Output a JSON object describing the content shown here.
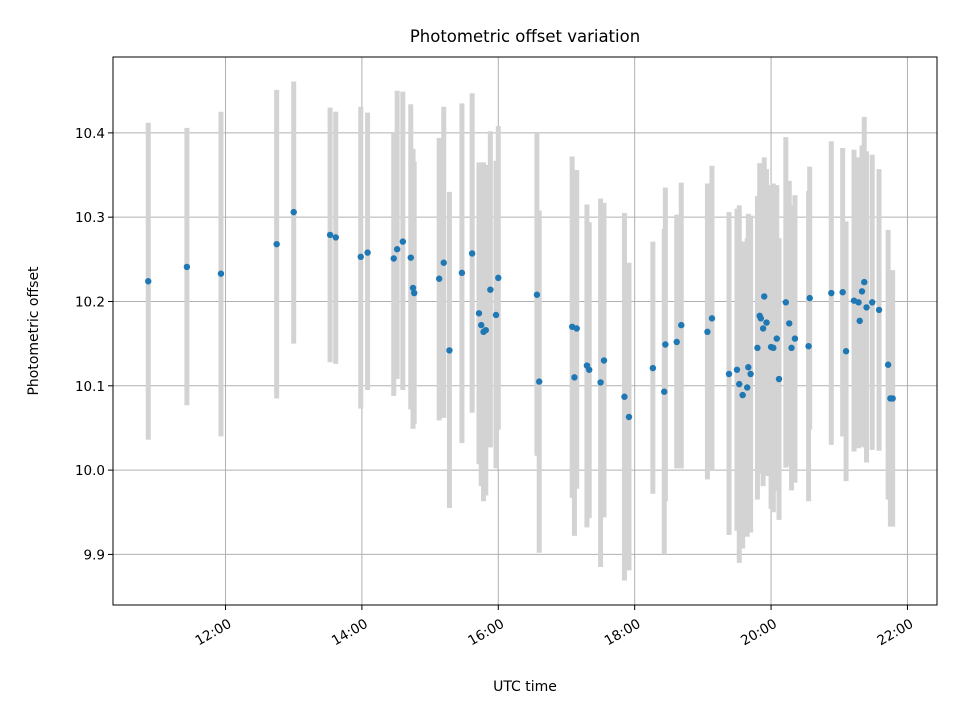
{
  "chart_data": {
    "type": "scatter",
    "title": "Photometric offset variation",
    "xlabel": "UTC time",
    "ylabel": "Photometric offset",
    "x_ticks": [
      "12:00",
      "14:00",
      "16:00",
      "18:00",
      "20:00",
      "22:00"
    ],
    "y_ticks": [
      "9.9",
      "10.0",
      "10.1",
      "10.2",
      "10.3",
      "10.4"
    ],
    "xlim": [
      "10:21",
      "22:26"
    ],
    "ylim": [
      9.84,
      10.49
    ],
    "grid": true,
    "colors": {
      "points": "#1f77b4",
      "error_bars": "#d3d3d3",
      "grid": "#b0b0b0"
    },
    "series": [
      {
        "x": [
          "10:52",
          "11:26",
          "11:56",
          "12:45",
          "13:00",
          "13:32",
          "13:37",
          "13:59",
          "14:05",
          "14:28",
          "14:31",
          "14:36",
          "14:43",
          "14:45",
          "14:46",
          "15:08",
          "15:12",
          "15:17",
          "15:28",
          "15:37",
          "15:43",
          "15:45",
          "15:47",
          "15:49",
          "15:53",
          "15:58",
          "16:00",
          "16:34",
          "16:36",
          "17:05",
          "17:07",
          "17:09",
          "17:18",
          "17:20",
          "17:30",
          "17:33",
          "17:51",
          "17:55",
          "18:16",
          "18:26",
          "18:27",
          "18:37",
          "18:41",
          "19:04",
          "19:08",
          "19:23",
          "19:30",
          "19:32",
          "19:35",
          "19:39",
          "19:40",
          "19:42",
          "19:48",
          "19:50",
          "19:51",
          "19:53",
          "19:54",
          "19:56",
          "20:00",
          "20:02",
          "20:05",
          "20:07",
          "20:13",
          "20:16",
          "20:18",
          "20:21",
          "20:33",
          "20:34",
          "20:53",
          "21:03",
          "21:06",
          "21:13",
          "21:17",
          "21:18",
          "21:20",
          "21:22",
          "21:24",
          "21:29",
          "21:35",
          "21:43",
          "21:45",
          "21:47"
        ],
        "y": [
          10.224,
          10.241,
          10.233,
          10.268,
          10.306,
          10.279,
          10.276,
          10.253,
          10.258,
          10.251,
          10.262,
          10.271,
          10.252,
          10.216,
          10.21,
          10.227,
          10.246,
          10.142,
          10.234,
          10.257,
          10.186,
          10.172,
          10.164,
          10.166,
          10.214,
          10.184,
          10.228,
          10.208,
          10.105,
          10.17,
          10.11,
          10.168,
          10.124,
          10.119,
          10.104,
          10.13,
          10.087,
          10.063,
          10.121,
          10.093,
          10.149,
          10.152,
          10.172,
          10.164,
          10.18,
          10.114,
          10.119,
          10.102,
          10.089,
          10.098,
          10.122,
          10.114,
          10.145,
          10.183,
          10.18,
          10.168,
          10.206,
          10.175,
          10.146,
          10.145,
          10.156,
          10.108,
          10.199,
          10.174,
          10.145,
          10.156,
          10.147,
          10.204,
          10.21,
          10.211,
          10.141,
          10.201,
          10.199,
          10.177,
          10.212,
          10.223,
          10.193,
          10.199,
          10.19,
          10.125,
          10.085,
          10.085
        ],
        "err_low": [
          10.036,
          10.077,
          10.04,
          10.085,
          10.15,
          10.128,
          10.126,
          10.073,
          10.095,
          10.088,
          10.108,
          10.095,
          10.072,
          10.049,
          10.055,
          10.059,
          10.062,
          9.955,
          10.032,
          10.068,
          10.007,
          9.981,
          9.963,
          9.97,
          10.027,
          10.002,
          10.048,
          10.017,
          9.902,
          9.967,
          9.922,
          9.978,
          9.932,
          9.943,
          9.885,
          9.944,
          9.869,
          9.881,
          9.972,
          9.9,
          9.963,
          10.002,
          10.002,
          9.989,
          9.999,
          9.923,
          9.928,
          9.89,
          9.907,
          9.921,
          9.94,
          9.926,
          9.965,
          10.002,
          9.996,
          9.981,
          10.027,
          9.993,
          9.954,
          9.95,
          9.975,
          9.941,
          10.003,
          10.005,
          9.976,
          9.985,
          9.963,
          10.048,
          10.03,
          10.04,
          9.987,
          10.022,
          10.026,
          10.028,
          10.039,
          10.027,
          10.009,
          10.024,
          10.023,
          9.965,
          9.933,
          9.933
        ],
        "err_high": [
          10.412,
          10.406,
          10.425,
          10.451,
          10.461,
          10.43,
          10.425,
          10.431,
          10.424,
          10.401,
          10.45,
          10.449,
          10.434,
          10.381,
          10.366,
          10.394,
          10.431,
          10.33,
          10.435,
          10.447,
          10.365,
          10.363,
          10.365,
          10.362,
          10.402,
          10.367,
          10.408,
          10.399,
          10.308,
          10.372,
          10.298,
          10.356,
          10.315,
          10.294,
          10.322,
          10.317,
          10.305,
          10.246,
          10.271,
          10.286,
          10.335,
          10.303,
          10.341,
          10.34,
          10.361,
          10.306,
          10.31,
          10.314,
          10.271,
          10.275,
          10.304,
          10.302,
          10.325,
          10.364,
          10.364,
          10.354,
          10.371,
          10.357,
          10.338,
          10.34,
          10.338,
          10.275,
          10.395,
          10.343,
          10.314,
          10.326,
          10.331,
          10.36,
          10.39,
          10.382,
          10.295,
          10.38,
          10.371,
          10.326,
          10.385,
          10.419,
          10.378,
          10.374,
          10.357,
          10.285,
          10.237,
          10.237
        ]
      }
    ]
  }
}
